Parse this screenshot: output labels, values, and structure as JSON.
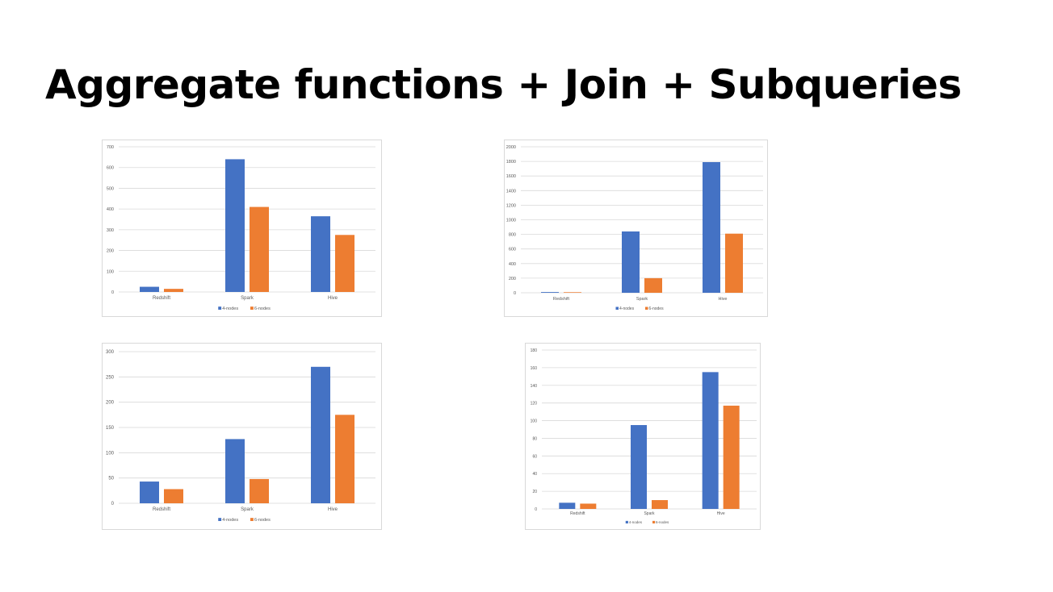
{
  "slide": {
    "title": "Aggregate functions + Join + Subqueries"
  },
  "colors": {
    "series1": "#4472c4",
    "series2": "#ed7d31",
    "grid": "#d9d9d9",
    "tick_text": "#595959"
  },
  "chart_data": [
    {
      "type": "bar",
      "categories": [
        "Redshift",
        "Spark",
        "Hive"
      ],
      "series": [
        {
          "name": "4-nodes",
          "values": [
            25,
            640,
            365
          ]
        },
        {
          "name": "6-nodes",
          "values": [
            15,
            410,
            275
          ]
        }
      ],
      "ylim": [
        0,
        700
      ],
      "yticks": [
        0,
        100,
        200,
        300,
        400,
        500,
        600,
        700
      ],
      "grid": true,
      "legend": "bottom"
    },
    {
      "type": "bar",
      "categories": [
        "Redshift",
        "Spark",
        "Hive"
      ],
      "series": [
        {
          "name": "4-nodes",
          "values": [
            10,
            840,
            1790
          ]
        },
        {
          "name": "6-nodes",
          "values": [
            8,
            200,
            810
          ]
        }
      ],
      "ylim": [
        0,
        2000
      ],
      "yticks": [
        0,
        200,
        400,
        600,
        800,
        1000,
        1200,
        1400,
        1600,
        1800,
        2000
      ],
      "grid": true,
      "legend": "bottom"
    },
    {
      "type": "bar",
      "categories": [
        "Redshift",
        "Spark",
        "Hive"
      ],
      "series": [
        {
          "name": "4-nodes",
          "values": [
            43,
            127,
            270
          ]
        },
        {
          "name": "6-nodes",
          "values": [
            28,
            48,
            175
          ]
        }
      ],
      "ylim": [
        0,
        300
      ],
      "yticks": [
        0,
        50,
        100,
        150,
        200,
        250,
        300
      ],
      "grid": true,
      "legend": "bottom"
    },
    {
      "type": "bar",
      "categories": [
        "Redshift",
        "Spark",
        "Hive"
      ],
      "series": [
        {
          "name": "4-nodes",
          "values": [
            7,
            95,
            155
          ]
        },
        {
          "name": "6-nodes",
          "values": [
            6,
            10,
            117
          ]
        }
      ],
      "ylim": [
        0,
        180
      ],
      "yticks": [
        0,
        20,
        40,
        60,
        80,
        100,
        120,
        140,
        160,
        180
      ],
      "grid": true,
      "legend": "bottom"
    }
  ]
}
